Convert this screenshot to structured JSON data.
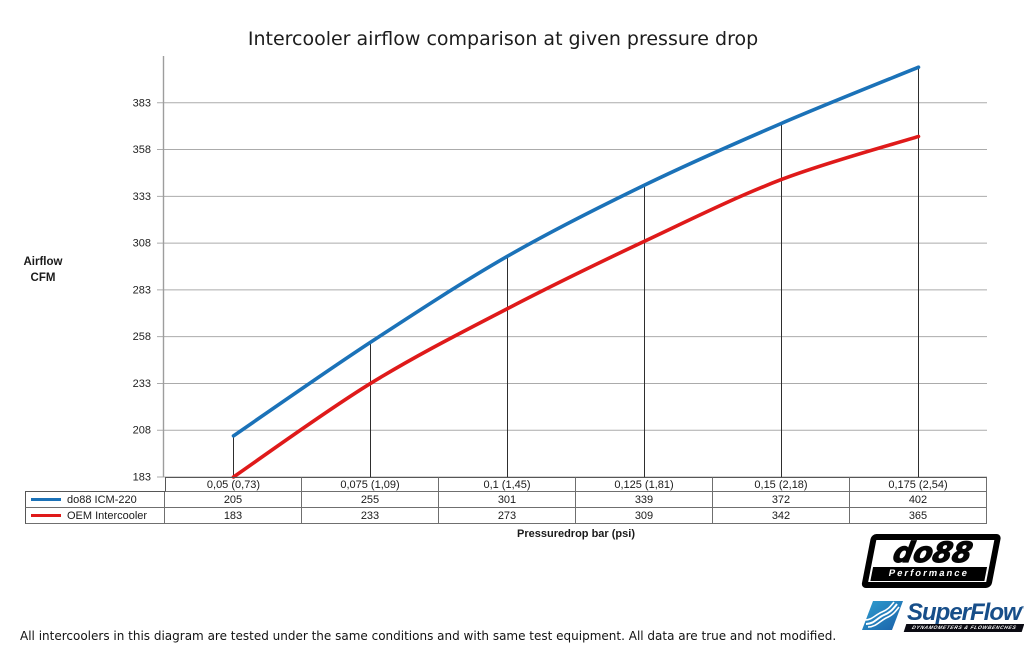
{
  "title": "Intercooler airflow comparison at given pressure drop",
  "y_axis": {
    "label_line1": "Airflow",
    "label_line2": "CFM"
  },
  "x_axis": {
    "label": "Pressuredrop bar (psi)"
  },
  "footer": "All intercoolers in this diagram are tested under the same conditions and with same test equipment. All data are true and not modified.",
  "logos": {
    "do88": {
      "name": "do88",
      "tagline": "Performance"
    },
    "superflow": {
      "name": "SuperFlow",
      "tm": "™",
      "tagline": "DYNAMOMETERS & FLOWBENCHES"
    }
  },
  "colors": {
    "series_do88": "#1b72b8",
    "series_oem": "#df1a1a",
    "gridline": "#ababab",
    "axis": "#9d9d9d",
    "drop_line": "#2e2e2e",
    "superflow_blue_light": "#2f9fd0",
    "superflow_blue_dark": "#1a5fa8",
    "superflow_text": "#174e89"
  },
  "chart_data": {
    "type": "line",
    "smooth": true,
    "grid": true,
    "title": "Intercooler airflow comparison at given pressure drop",
    "xlabel": "Pressuredrop bar (psi)",
    "ylabel": "Airflow CFM",
    "categories": [
      "0,05 (0,73)",
      "0,075 (1,09)",
      "0,1 (1,45)",
      "0,125 (1,81)",
      "0,15 (2,18)",
      "0,175 (2,54)"
    ],
    "series": [
      {
        "name": "do88 ICM-220",
        "color": "#1b72b8",
        "values": [
          205,
          255,
          301,
          339,
          372,
          402
        ]
      },
      {
        "name": "OEM Intercooler",
        "color": "#df1a1a",
        "values": [
          183,
          233,
          273,
          309,
          342,
          365
        ]
      }
    ],
    "yticks": [
      183,
      208,
      233,
      258,
      283,
      308,
      333,
      358,
      383
    ],
    "ylim": [
      183,
      408
    ],
    "legend_position": "table-left",
    "drop_lines_to_first_series": true
  }
}
